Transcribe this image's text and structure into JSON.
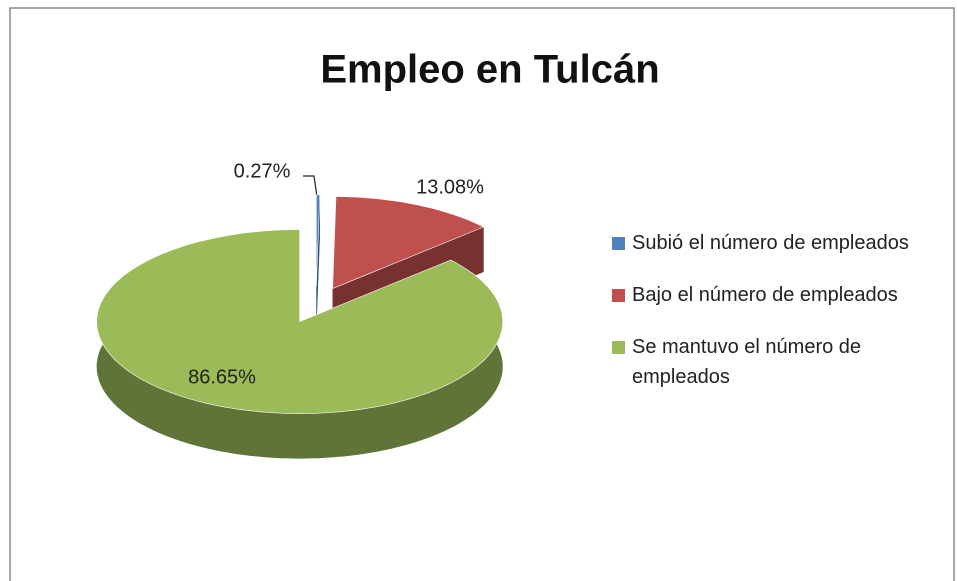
{
  "chart_data": {
    "type": "pie3d",
    "title": "Empleo en Tulcán",
    "categories": [
      "Subió el número de empleados",
      "Bajo el número de empleados",
      "Se mantuvo el número de empleados"
    ],
    "values": [
      0.27,
      13.08,
      86.65
    ],
    "value_labels": [
      "0.27%",
      "13.08%",
      "86.65%"
    ],
    "colors": [
      "#4f81bd",
      "#c0504d",
      "#9bbb59"
    ],
    "legend": "right"
  }
}
